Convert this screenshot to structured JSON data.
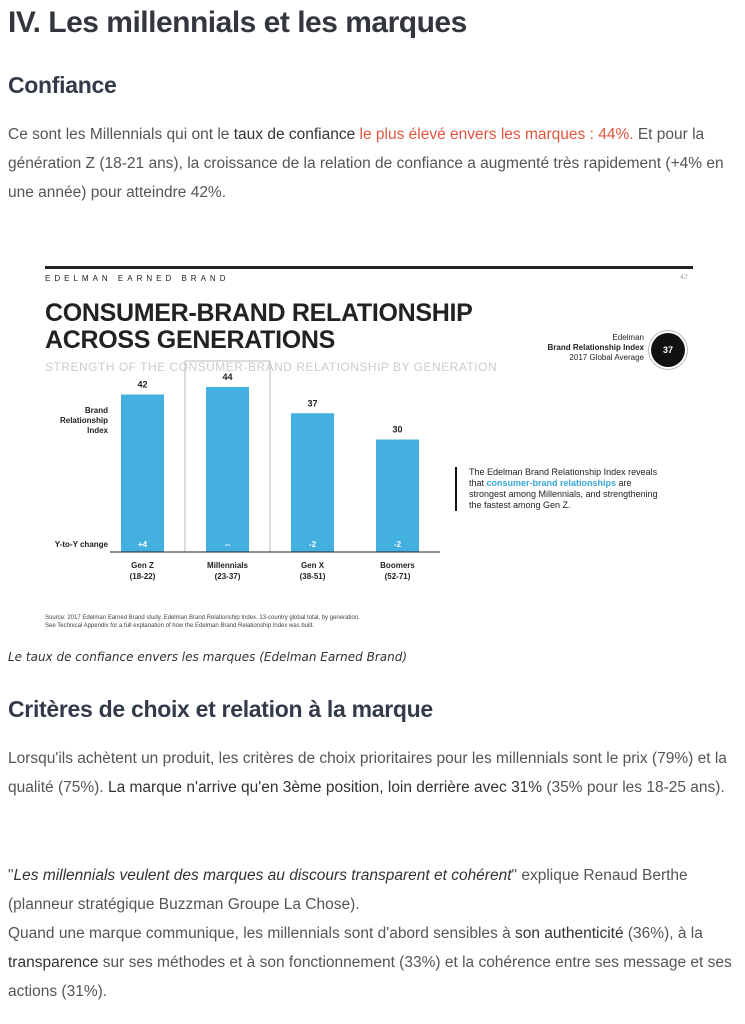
{
  "page": {
    "section_title": "IV. Les millennials et les marques",
    "h_confiance": "Confiance",
    "p1": {
      "a": "Ce sont les Millennials qui ont le ",
      "b": "taux de confiance",
      "c": " le plus élevé envers les marques : 44%.",
      "d": " Et pour la génération Z (18-21 ans), la croissance de la relation de confiance a augmenté très rapidement (+4% en une année) pour atteindre 42%."
    },
    "caption": "Le taux de confiance envers les marques (Edelman Earned Brand)",
    "h_criteres": "Critères de choix et relation à la marque",
    "p2": {
      "a": "Lorsqu'ils achètent un produit, les critères de choix prioritaires pour les millennials sont le prix (79%) et la qualité (75%). ",
      "b": "La marque n'arrive qu'en 3ème position, loin derrière avec 31%",
      "c": " (35% pour les 18-25 ans)."
    },
    "p3": {
      "q1": "\"",
      "quote": "Les millennials veulent des marques au discours transparent et cohérent",
      "q2": "\"",
      "rest": " explique Renaud Berthe (planneur stratégique Buzzman Groupe La Chose).",
      "l2a": "Quand une marque communique, les millennials sont d'abord sensibles à ",
      "l2b": "son authenticité",
      "l2c": " (36%), à la ",
      "l2d": "transparence",
      "l2e": " sur ses méthodes et à son fonctionnement (33%) et la cohérence entre ses message et ses actions (31%)."
    }
  },
  "chart_data": {
    "type": "bar",
    "brand": "EDELMAN EARNED BRAND",
    "page_number": "42",
    "title_line1": "CONSUMER-BRAND RELATIONSHIP",
    "title_line2": "ACROSS GENERATIONS",
    "subtitle": "STRENGTH OF THE CONSUMER-BRAND RELATIONSHIP BY GENERATION",
    "index_label": [
      "Edelman",
      "Brand Relationship Index",
      "2017 Global Average"
    ],
    "index_value": "37",
    "ylabel_line1": "Brand",
    "ylabel_line2": "Relationship Index",
    "change_label": "Y-to-Y change",
    "categories": [
      {
        "name": "Gen Z",
        "range": "(18-22)"
      },
      {
        "name": "Millennials",
        "range": "(23-37)"
      },
      {
        "name": "Gen X",
        "range": "(38-51)"
      },
      {
        "name": "Boomers",
        "range": "(52-71)"
      }
    ],
    "values": [
      42,
      44,
      37,
      30
    ],
    "changes": [
      "+4",
      "--",
      "-2",
      "-2"
    ],
    "highlight_index": 1,
    "ylim": [
      0,
      48
    ],
    "bar_color": "#44b0df",
    "note": {
      "a": "The Edelman Brand Relationship Index reveals that ",
      "b": "consumer-brand relationships",
      "c": " are strongest among Millennials, and strengthening the fastest among Gen Z."
    },
    "source_1": "Source: 2017 Edelman Earned Brand study. Edelman Brand Relationship Index. 13-country global total, by generation.",
    "source_2": "See Technical Appendix for a full explanation of how the Edelman Brand Relationship Index was built."
  }
}
